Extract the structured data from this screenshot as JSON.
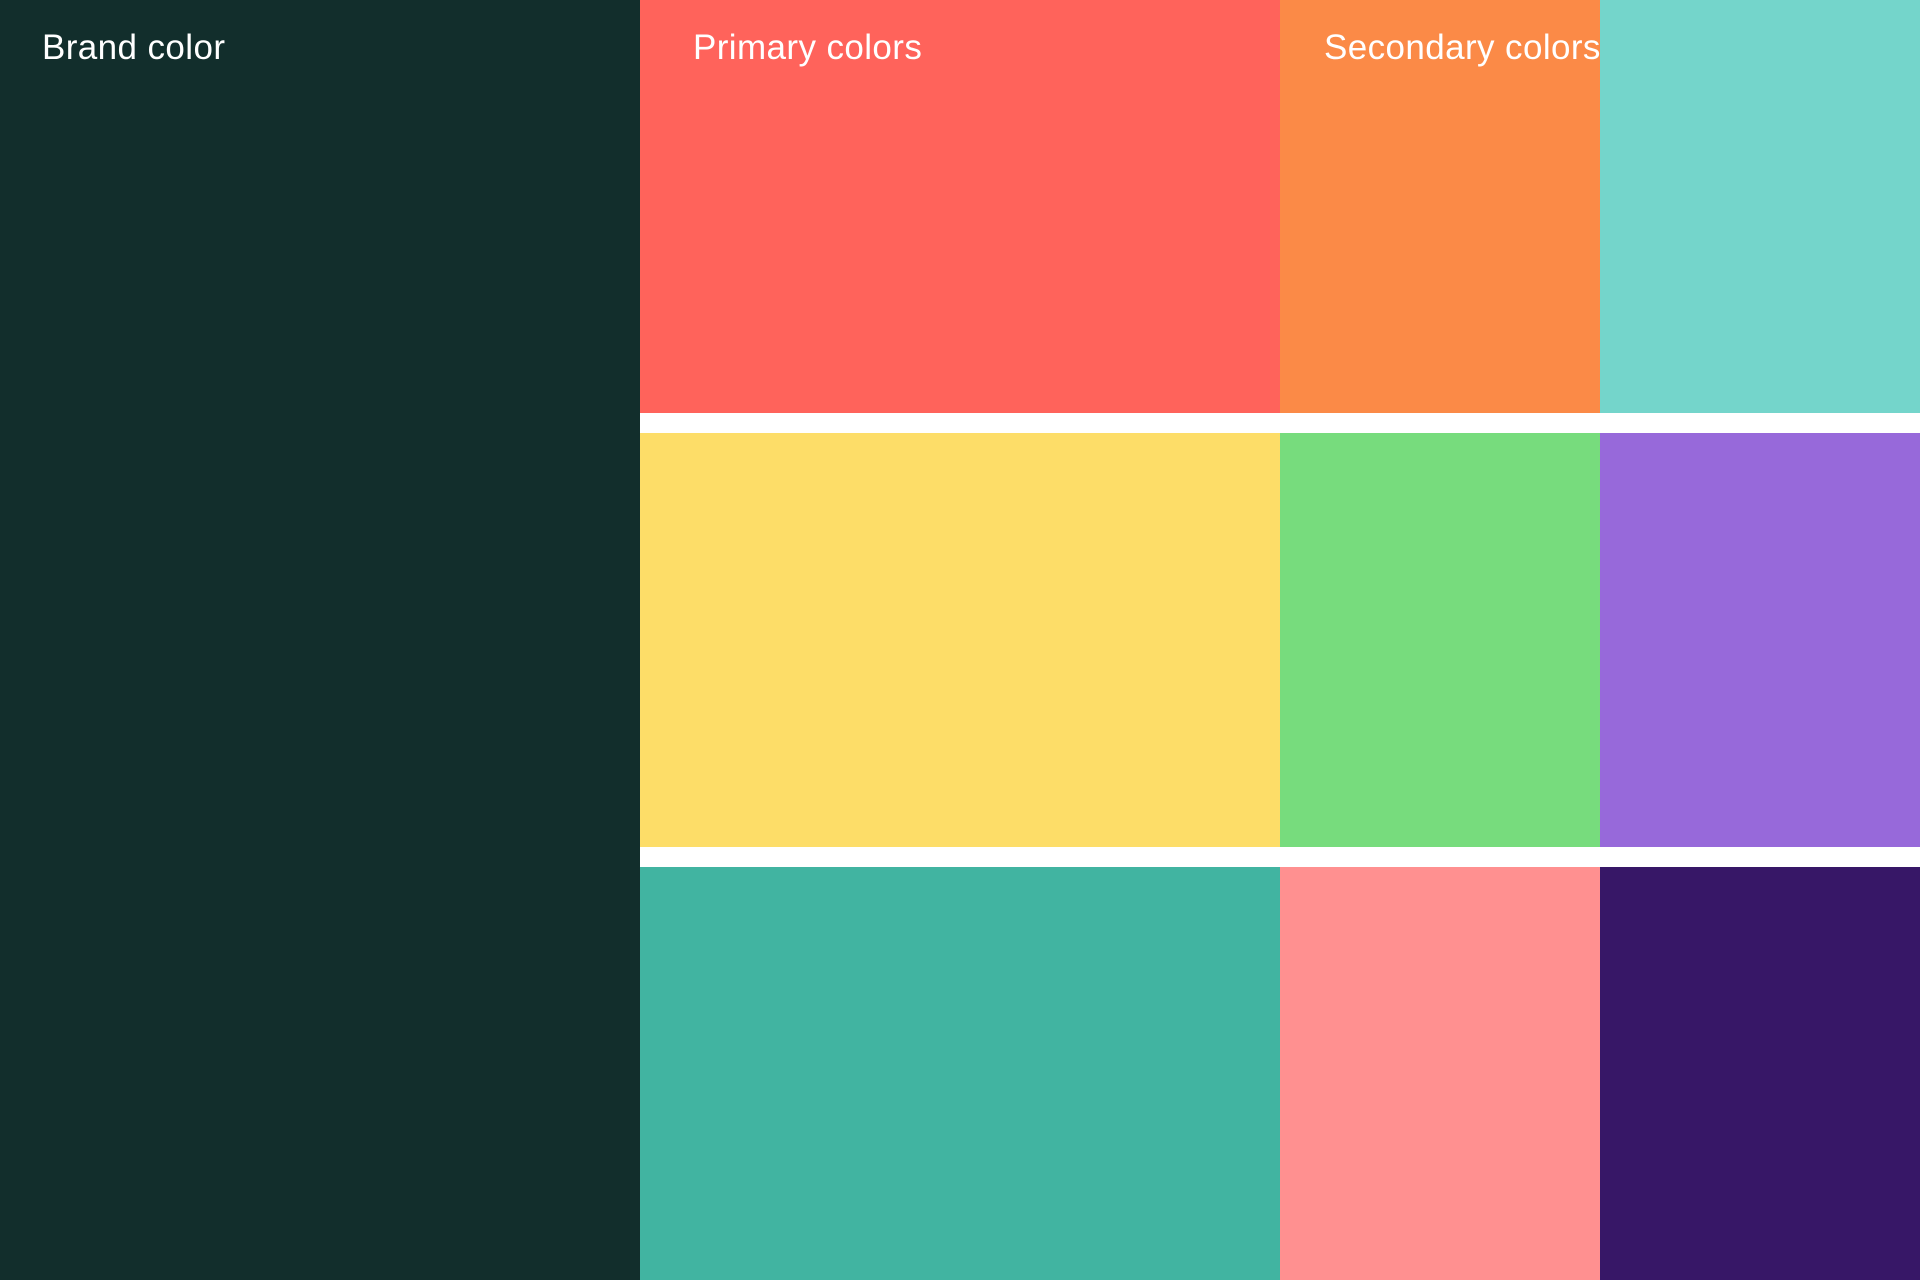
{
  "board": {
    "gap_color": "#FFFFFF",
    "label_color": "#FFFFFF"
  },
  "brand": {
    "label": "Brand color",
    "hex": "#122E2C"
  },
  "primary": {
    "label": "Primary colors",
    "swatches": [
      {
        "name": "coral-red",
        "hex": "#FF635B"
      },
      {
        "name": "yellow",
        "hex": "#FDDD68"
      },
      {
        "name": "teal-green",
        "hex": "#41B4A1"
      }
    ]
  },
  "secondary": {
    "label": "Secondary colors",
    "swatches": [
      {
        "name": "orange",
        "hex": "#FB8A47"
      },
      {
        "name": "light-teal",
        "hex": "#74D5CB"
      },
      {
        "name": "green",
        "hex": "#77DC7D"
      },
      {
        "name": "purple",
        "hex": "#9769DA"
      },
      {
        "name": "salmon-pink",
        "hex": "#FF9090"
      },
      {
        "name": "dark-purple",
        "hex": "#371767"
      }
    ]
  }
}
